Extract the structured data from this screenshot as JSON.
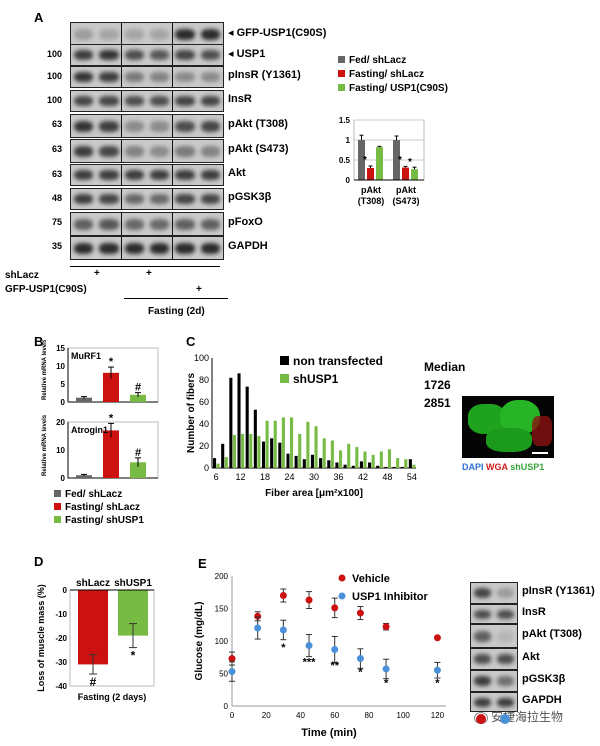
{
  "panels": {
    "A": "A",
    "B": "B",
    "C": "C",
    "D": "D",
    "E": "E"
  },
  "panelA": {
    "blot_labels": [
      "GFP-USP1(C90S)",
      "USP1",
      "pInsR (Y1361)",
      "InsR",
      "pAkt (T308)",
      "pAkt (S473)",
      "Akt",
      "pGSK3β",
      "pFoxO",
      "GAPDH"
    ],
    "mw": [
      "100",
      "100",
      "100",
      "63",
      "63",
      "63",
      "48",
      "75",
      "35"
    ],
    "row_labels": [
      "shLacz",
      "GFP-USP1(C90S)"
    ],
    "plus": "+",
    "group_label": "Fasting (2d)",
    "legend": [
      "Fed/ shLacz",
      "Fasting/ shLacz",
      "Fasting/ USP1(C90S)"
    ],
    "chart_data": {
      "type": "bar",
      "categories": [
        "pAkt (T308)",
        "pAkt (S473)"
      ],
      "series": [
        {
          "name": "Fed/ shLacz",
          "values": [
            1.0,
            1.0
          ]
        },
        {
          "name": "Fasting/ shLacz",
          "values": [
            0.3,
            0.31
          ]
        },
        {
          "name": "Fasting/ USP1(C90S)",
          "values": [
            0.82,
            0.27
          ]
        }
      ],
      "errors": [
        [
          0.12,
          0.1
        ],
        [
          0.05,
          0.03
        ],
        [
          0.02,
          0.05
        ]
      ],
      "ylim": [
        0,
        1.5
      ],
      "yticks": [
        "0",
        "0.5",
        "1",
        "1.5"
      ],
      "annotations": [
        "*",
        "*",
        "*"
      ],
      "colors": [
        "#666666",
        "#cc1111",
        "#77bb44"
      ]
    }
  },
  "panelB": {
    "charts": [
      {
        "title": "MuRF1",
        "ylabel": "Relative mRNA levels",
        "values": [
          1.2,
          8.1,
          2.0
        ],
        "errors": [
          0.3,
          1.6,
          0.6
        ],
        "ylim": [
          0,
          15
        ],
        "yticks": [
          "0",
          "5",
          "10",
          "15"
        ],
        "marks": [
          "",
          "*",
          "#"
        ]
      },
      {
        "title": "Atrogin1",
        "ylabel": "Relative mRNA levels",
        "values": [
          1.0,
          17.0,
          5.6
        ],
        "errors": [
          0.3,
          2.5,
          1.6
        ],
        "ylim": [
          0,
          20
        ],
        "yticks": [
          "0",
          "10",
          "20"
        ],
        "marks": [
          "",
          "*",
          "#"
        ]
      }
    ],
    "legend": [
      "Fed/ shLacz",
      "Fasting/ shLacz",
      "Fasting/ shUSP1"
    ],
    "colors": [
      "#666666",
      "#cc1111",
      "#77bb44"
    ]
  },
  "panelC": {
    "chart_data": {
      "type": "bar",
      "x": [
        6,
        8,
        10,
        12,
        14,
        16,
        18,
        20,
        22,
        24,
        26,
        28,
        30,
        32,
        34,
        36,
        38,
        40,
        42,
        44,
        46,
        48,
        50,
        52,
        54
      ],
      "series": [
        {
          "name": "non transfected",
          "values": [
            9,
            22,
            82,
            86,
            74,
            53,
            24,
            27,
            23,
            13,
            11,
            8,
            12,
            9,
            7,
            5,
            3,
            2,
            6,
            5,
            2,
            1,
            1,
            1,
            8
          ]
        },
        {
          "name": "shUSP1",
          "values": [
            4,
            10,
            30,
            31,
            31,
            29,
            43,
            43,
            46,
            46,
            31,
            42,
            38,
            27,
            25,
            16,
            22,
            19,
            15,
            12,
            15,
            17,
            9,
            8,
            3
          ]
        }
      ],
      "ylim": [
        0,
        100
      ],
      "yticks": [
        "0",
        "20",
        "40",
        "60",
        "80",
        "100"
      ],
      "xticks": [
        "6",
        "12",
        "18",
        "24",
        "30",
        "36",
        "42",
        "48",
        "54"
      ],
      "ylabel": "Number of fibers",
      "xlabel": "Fiber area [μm²x100]"
    },
    "median_title": "Median",
    "median_values": [
      "1726",
      "2851"
    ],
    "micro_labels": [
      "DAPI",
      "WGA",
      "shUSP1"
    ]
  },
  "panelD": {
    "chart_data": {
      "type": "bar",
      "categories": [
        "shLacz",
        "shUSP1"
      ],
      "values": [
        -31,
        -19
      ],
      "errors": [
        4,
        5
      ],
      "ylim": [
        -40,
        0
      ],
      "yticks": [
        "0",
        "-10",
        "-20",
        "-30",
        "-40"
      ],
      "ylabel": "Loss of muscle mass (%)",
      "xlabel": "Fasting (2 days)",
      "marks": [
        "#",
        "*"
      ],
      "colors": [
        "#cc1111",
        "#77bb44"
      ]
    }
  },
  "panelE": {
    "chart_data": {
      "type": "scatter",
      "x": [
        0,
        15,
        30,
        45,
        60,
        75,
        90,
        120
      ],
      "series": [
        {
          "name": "Vehicle",
          "values": [
            73,
            138,
            170,
            163,
            151,
            143,
            122,
            105
          ],
          "errors": [
            10,
            7,
            10,
            13,
            15,
            10,
            5,
            0
          ]
        },
        {
          "name": "USP1 Inhibitor",
          "values": [
            53,
            120,
            117,
            93,
            87,
            73,
            57,
            55
          ],
          "errors": [
            15,
            17,
            15,
            17,
            20,
            15,
            15,
            12
          ]
        }
      ],
      "ylim": [
        0,
        200
      ],
      "yticks": [
        "0",
        "50",
        "100",
        "150",
        "200"
      ],
      "xticks": [
        "0",
        "20",
        "40",
        "60",
        "80",
        "100",
        "120"
      ],
      "ylabel": "Glucose (mg/dL)",
      "xlabel": "Time (min)",
      "annotations": [
        "*",
        "***",
        "**",
        "*",
        "*",
        "*"
      ],
      "colors": [
        "#cc1111",
        "#4a90d9"
      ]
    },
    "blot_labels": [
      "pInsR (Y1361)",
      "InsR",
      "pAkt (T308)",
      "Akt",
      "pGSK3β",
      "GAPDH"
    ],
    "watermark": "安捷海拉生物"
  }
}
